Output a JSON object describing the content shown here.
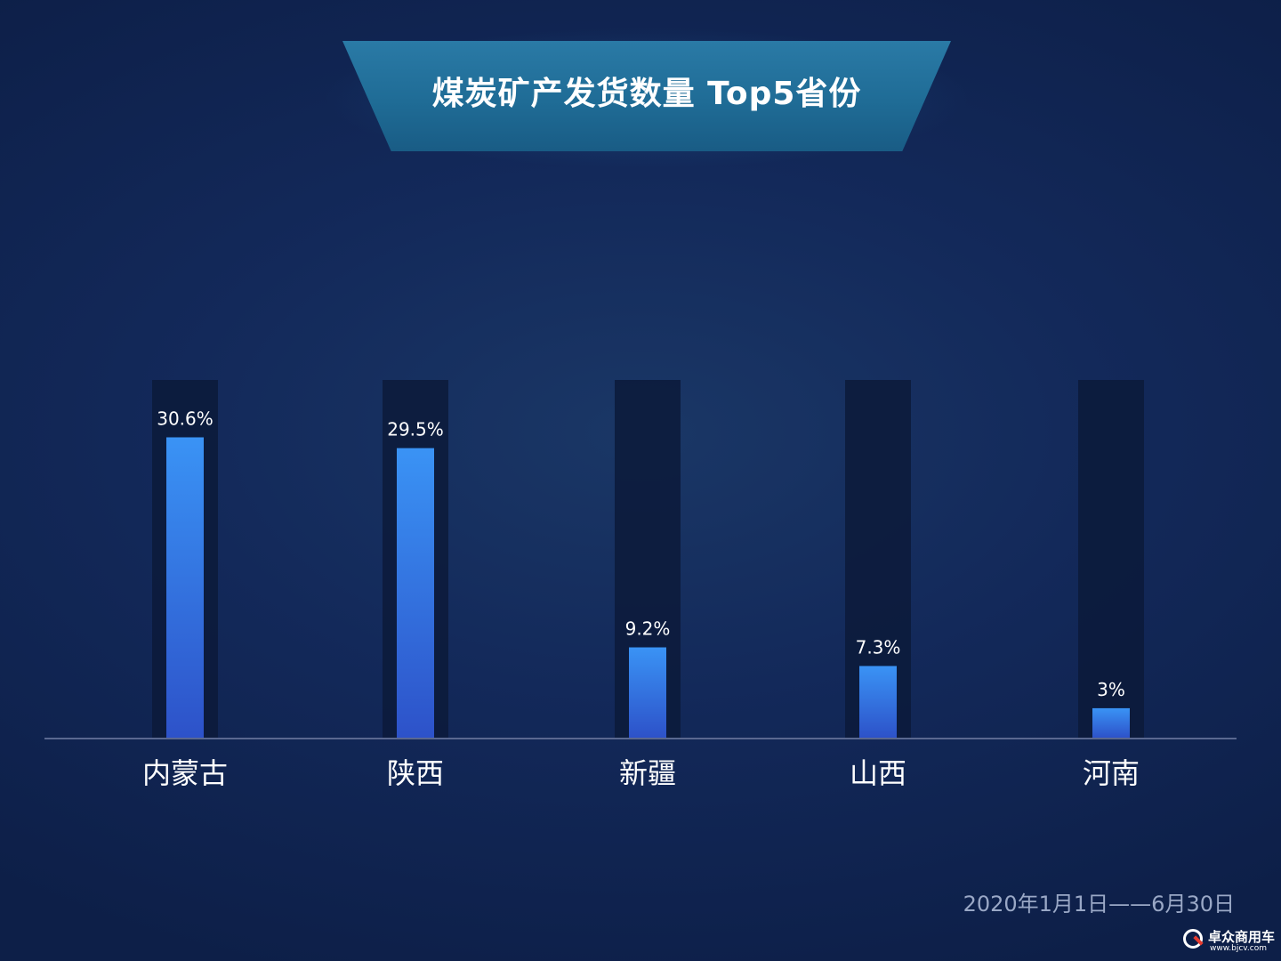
{
  "chart_data": {
    "type": "bar",
    "title": "煤炭矿产发货数量 Top5省份",
    "categories": [
      "内蒙古",
      "陕西",
      "新疆",
      "山西",
      "河南"
    ],
    "values": [
      30.6,
      29.5,
      9.2,
      7.3,
      3
    ],
    "data_labels": [
      "30.6%",
      "29.5%",
      "9.2%",
      "7.3%",
      "3%"
    ],
    "unit": "%",
    "ylim": [
      0,
      36
    ],
    "grid": false,
    "legend": "none",
    "colors": {
      "bar_top": "#3a93f5",
      "bar_bottom": "#2d52c9",
      "track": "#0c1a3a",
      "axis": "#5a6890",
      "label": "#ffffff"
    }
  },
  "footer": {
    "date_range": "2020年1月1日——6月30日"
  },
  "logo": {
    "name": "卓众商用车",
    "url": "www.bjcv.com"
  }
}
